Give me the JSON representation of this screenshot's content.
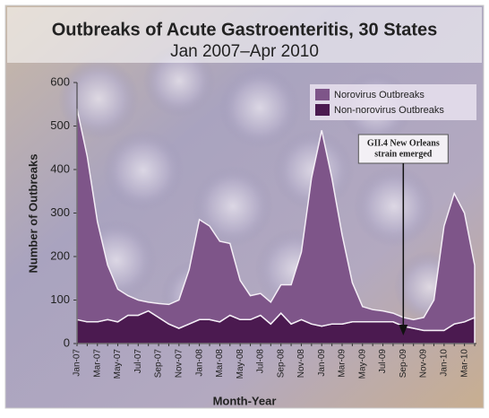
{
  "chart_data": {
    "type": "stacked-area",
    "title": "Outbreaks of Acute Gastroenteritis, 30 States",
    "subtitle": "Jan 2007–Apr 2010",
    "x_label": "Month-Year",
    "y_label": "Number of Outbreaks",
    "categories": [
      "Jan-07",
      null,
      "Mar-07",
      null,
      "May-07",
      null,
      "Jul-07",
      null,
      "Sep-07",
      null,
      "Nov-07",
      null,
      "Jan-08",
      null,
      "Mar-08",
      null,
      "May-08",
      null,
      "Jul-08",
      null,
      "Sep-08",
      null,
      "Nov-08",
      null,
      "Jan-09",
      null,
      "Mar-09",
      null,
      "May-09",
      null,
      "Jul-09",
      null,
      "Sep-09",
      null,
      "Nov-09",
      null,
      "Jan-10",
      null,
      "Mar-10",
      null
    ],
    "series": [
      {
        "name": "Norovirus Outbreaks",
        "color": "#7e5589",
        "values": [
          485,
          380,
          230,
          125,
          75,
          45,
          35,
          20,
          32,
          45,
          65,
          125,
          230,
          215,
          185,
          165,
          90,
          55,
          50,
          50,
          65,
          90,
          155,
          335,
          450,
          335,
          205,
          90,
          35,
          28,
          25,
          20,
          20,
          20,
          30,
          70,
          240,
          300,
          250,
          120
        ]
      },
      {
        "name": "Non-norovirus Outbreaks",
        "color": "#4b1a50",
        "values": [
          55,
          50,
          50,
          55,
          50,
          65,
          65,
          75,
          60,
          45,
          35,
          45,
          55,
          55,
          50,
          65,
          55,
          55,
          65,
          45,
          70,
          45,
          55,
          45,
          40,
          45,
          45,
          50,
          50,
          50,
          50,
          50,
          40,
          35,
          30,
          30,
          30,
          45,
          50,
          60
        ]
      }
    ],
    "ylim": [
      0,
      600
    ],
    "yticks": [
      0,
      100,
      200,
      300,
      400,
      500,
      600
    ],
    "legend": "top-right",
    "annotation": {
      "lines": [
        "GII.4 New Orleans",
        "strain emerged"
      ],
      "index": 32
    }
  }
}
